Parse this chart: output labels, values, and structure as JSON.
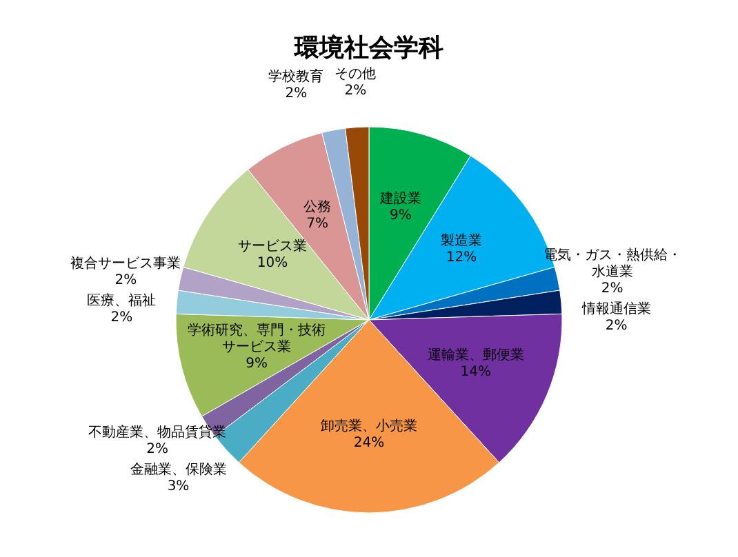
{
  "chart_data": {
    "type": "pie",
    "title": "環境社会学科",
    "categories": [
      "建設業",
      "製造業",
      "電気・ガス・熱供給・水道業",
      "情報通信業",
      "運輸業、郵便業",
      "卸売業、小売業",
      "金融業、保険業",
      "不動産業、物品賃貸業",
      "学術研究、専門・技術サービス業",
      "医療、福祉",
      "複合サービス事業",
      "サービス業",
      "公務",
      "学校教育",
      "その他"
    ],
    "values": [
      9,
      12,
      2,
      2,
      14,
      24,
      3,
      2,
      9,
      2,
      2,
      10,
      7,
      2,
      2
    ],
    "value_labels": [
      "9%",
      "12%",
      "2%",
      "2%",
      "14%",
      "24%",
      "3%",
      "2%",
      "9%",
      "2%",
      "2%",
      "10%",
      "7%",
      "2%",
      "2%"
    ],
    "colors": [
      "#00b050",
      "#00b0f0",
      "#0070c0",
      "#002060",
      "#7030a0",
      "#f79646",
      "#4bacc6",
      "#8064a2",
      "#9bbb59",
      "#93cddd",
      "#b3a2c7",
      "#c4d79b",
      "#d99694",
      "#95b3d7",
      "#984807"
    ]
  }
}
